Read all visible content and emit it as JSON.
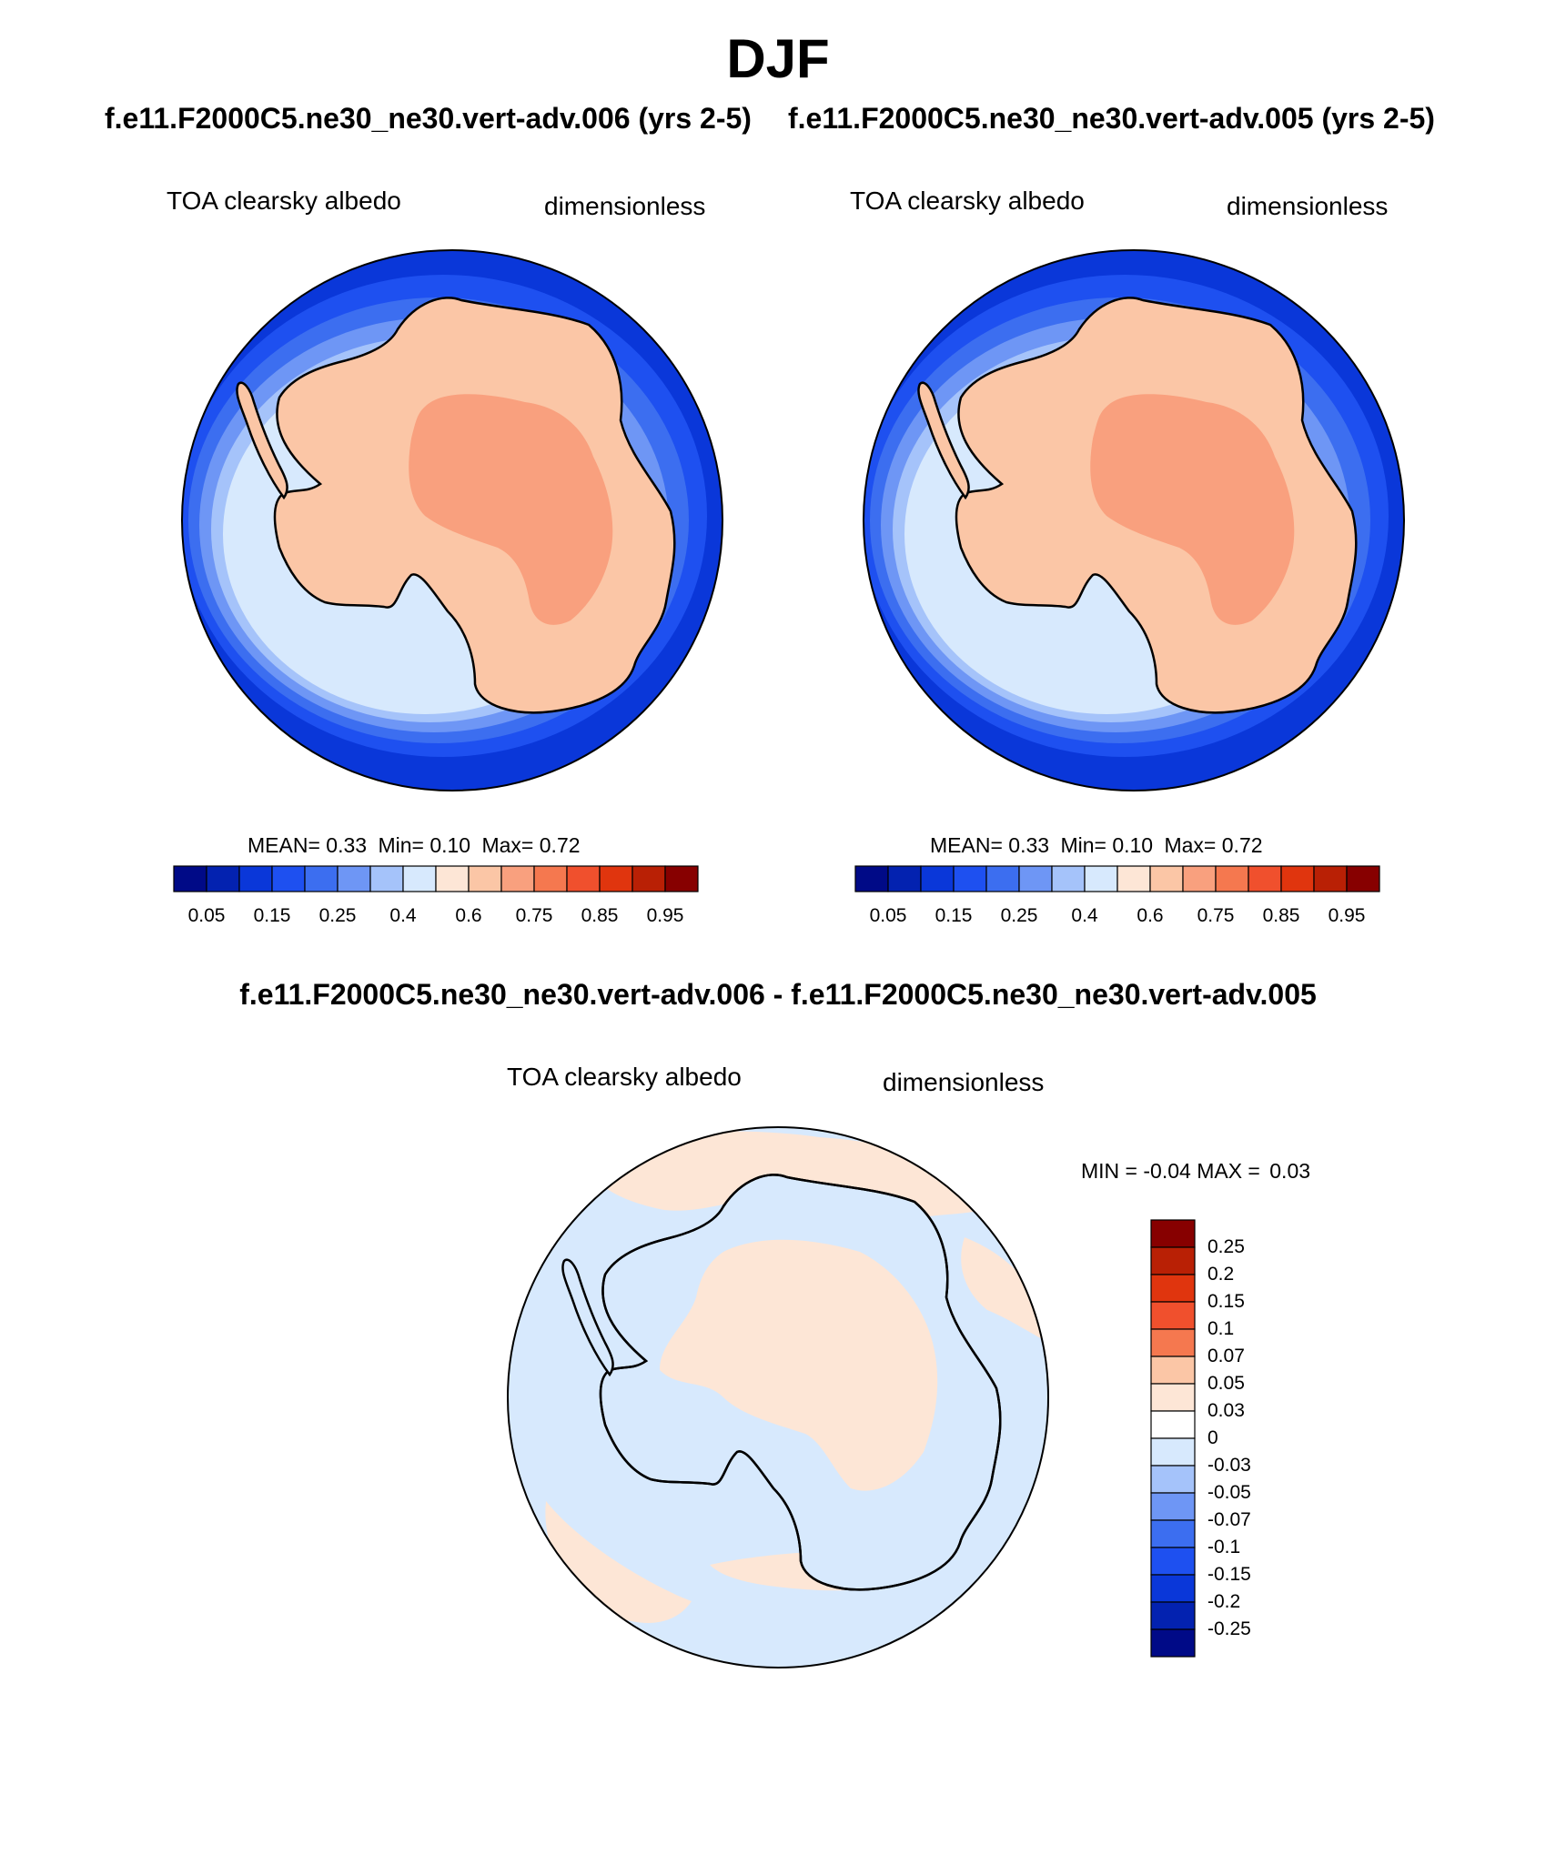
{
  "season": "DJF",
  "panels": [
    {
      "case_title": "f.e11.F2000C5.ne30_ne30.vert-adv.006 (yrs 2-5)",
      "variable": "TOA clearsky albedo",
      "units": "dimensionless",
      "stats": {
        "mean_label": "MEAN=",
        "mean": "0.33",
        "min_label": "Min=",
        "min": "0.10",
        "max_label": "Max=",
        "max": "0.72"
      },
      "colorbar": {
        "colors": [
          "#000a87",
          "#0322b0",
          "#0a37d9",
          "#1e50f0",
          "#3c6ef0",
          "#6e96f5",
          "#a5c3fa",
          "#d7e9fd",
          "#fde6d6",
          "#fbc6a6",
          "#f9a07e",
          "#f5784f",
          "#f0502d",
          "#e0350e",
          "#b92005",
          "#870000"
        ],
        "tick_labels": [
          "0.05",
          "0.15",
          "0.25",
          "0.4",
          "0.6",
          "0.75",
          "0.85",
          "0.95"
        ]
      }
    },
    {
      "case_title": "f.e11.F2000C5.ne30_ne30.vert-adv.005 (yrs 2-5)",
      "variable": "TOA clearsky albedo",
      "units": "dimensionless",
      "stats": {
        "mean_label": "MEAN=",
        "mean": "0.33",
        "min_label": "Min=",
        "min": "0.10",
        "max_label": "Max=",
        "max": "0.72"
      },
      "colorbar": {
        "colors": [
          "#000a87",
          "#0322b0",
          "#0a37d9",
          "#1e50f0",
          "#3c6ef0",
          "#6e96f5",
          "#a5c3fa",
          "#d7e9fd",
          "#fde6d6",
          "#fbc6a6",
          "#f9a07e",
          "#f5784f",
          "#f0502d",
          "#e0350e",
          "#b92005",
          "#870000"
        ],
        "tick_labels": [
          "0.05",
          "0.15",
          "0.25",
          "0.4",
          "0.6",
          "0.75",
          "0.85",
          "0.95"
        ]
      }
    }
  ],
  "difference": {
    "title": "f.e11.F2000C5.ne30_ne30.vert-adv.006 - f.e11.F2000C5.ne30_ne30.vert-adv.005",
    "variable": "TOA clearsky albedo",
    "units": "dimensionless",
    "stats": {
      "min_label": "MIN =",
      "min": "-0.04",
      "max_label": "MAX =",
      "max": "0.03"
    },
    "colorbar": {
      "colors_top_to_bottom": [
        "#870000",
        "#b92005",
        "#e0350e",
        "#f0502d",
        "#f5784f",
        "#fbc6a6",
        "#fde6d6",
        "#ffffff",
        "#d7e9fd",
        "#a5c3fa",
        "#6e96f5",
        "#3c6ef0",
        "#1e50f0",
        "#0a37d9",
        "#0322b0",
        "#000a87"
      ],
      "tick_labels_top_to_bottom": [
        "0.25",
        "0.2",
        "0.15",
        "0.1",
        "0.07",
        "0.05",
        "0.03",
        "0",
        "-0.03",
        "-0.05",
        "-0.07",
        "-0.1",
        "-0.15",
        "-0.2",
        "-0.25"
      ]
    }
  },
  "map_colors": {
    "ocean_deep": "#0a37d9",
    "band1": "#1e50f0",
    "band2": "#3c6ef0",
    "band3": "#6e96f5",
    "band4": "#a5c3fa",
    "band5": "#d7e9fd",
    "land": "#fbc6a6",
    "plateau": "#f9a07e",
    "diff_neg": "#d7e9fd",
    "diff_pos": "#fde6d6",
    "coast": "#000000"
  }
}
